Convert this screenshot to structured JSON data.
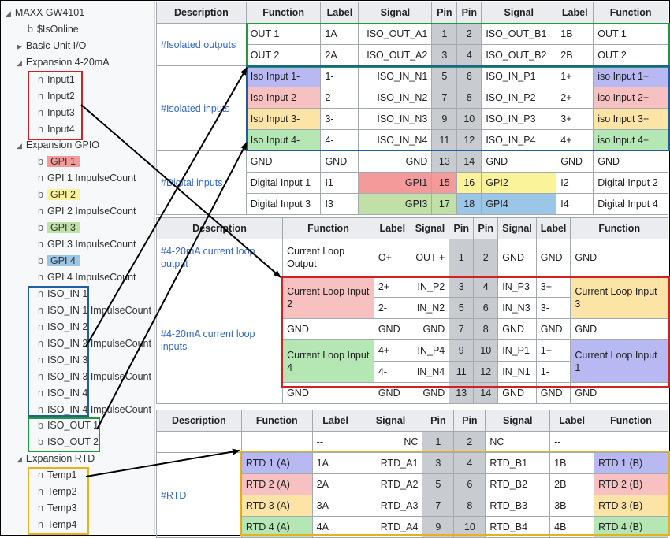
{
  "colors": {
    "blue": "#b8b8f2",
    "red": "#f7c1c1",
    "yellow": "#fce4a6",
    "green": "#b5e7b5",
    "gpi1": "#f59a9a",
    "gpi2": "#fbf39a",
    "gpi3": "#c0e0a8",
    "gpi4": "#9cc6e6"
  },
  "tree": {
    "root": "MAXX GW4101",
    "isonline": "$IsOnline",
    "basic_io": "Basic Unit I/O",
    "exp_420": "Expansion 4-20mA",
    "inputs": [
      "Input1",
      "Input2",
      "Input3",
      "Input4"
    ],
    "exp_gpio": "Expansion GPIO",
    "gpio": [
      "GPI 1",
      "GPI 1 ImpulseCount",
      "GPI 2",
      "GPI 2 ImpulseCount",
      "GPI 3",
      "GPI 3 ImpulseCount",
      "GPI 4",
      "GPI 4 ImpulseCount"
    ],
    "iso_in": [
      "ISO_IN 1",
      "ISO_IN 1 ImpulseCount",
      "ISO_IN 2",
      "ISO_IN 2 ImpulseCount",
      "ISO_IN 3",
      "ISO_IN 3 ImpulseCount",
      "ISO_IN 4",
      "ISO_IN 4 ImpulseCount"
    ],
    "iso_out": [
      "ISO_OUT 1",
      "ISO_OUT 2"
    ],
    "exp_rtd": "Expansion RTD",
    "temps": [
      "Temp1",
      "Temp2",
      "Temp3",
      "Temp4"
    ],
    "prefix_b": "b",
    "prefix_n": "n"
  },
  "table1": {
    "headers": [
      "Description",
      "Function",
      "Label",
      "Signal",
      "Pin",
      "Pin",
      "Signal",
      "Label",
      "Function"
    ],
    "iso_outputs": "#Isolated outputs",
    "iso_inputs": "#Isolated inputs",
    "digital_inputs": "#Digital inputs",
    "rows": [
      [
        "OUT 1",
        "1A",
        "ISO_OUT_A1",
        "1",
        "2",
        "ISO_OUT_B1",
        "1B",
        "OUT 1"
      ],
      [
        "OUT 2",
        "2A",
        "ISO_OUT_A2",
        "3",
        "4",
        "ISO_OUT_B2",
        "2B",
        "OUT 2"
      ],
      [
        "Iso Input 1-",
        "1-",
        "ISO_IN_N1",
        "5",
        "6",
        "ISO_IN_P1",
        "1+",
        "iso Input 1+"
      ],
      [
        "Iso Input 2-",
        "2-",
        "ISO_IN_N2",
        "7",
        "8",
        "ISO_IN_P2",
        "2+",
        "iso Input 2+"
      ],
      [
        "Iso Input 3-",
        "3-",
        "ISO_IN_N3",
        "9",
        "10",
        "ISO_IN_P3",
        "3+",
        "iso Input 3+"
      ],
      [
        "Iso Input 4-",
        "4-",
        "ISO_IN_N4",
        "11",
        "12",
        "ISO_IN_P4",
        "4+",
        "iso Input 4+"
      ],
      [
        "GND",
        "GND",
        "GND",
        "13",
        "14",
        "GND",
        "GND",
        "GND"
      ],
      [
        "Digital Input 1",
        "I1",
        "GPI1",
        "15",
        "16",
        "GPI2",
        "I2",
        "Digital Input 2"
      ],
      [
        "Digital Input 3",
        "I3",
        "GPI3",
        "17",
        "18",
        "GPI4",
        "I4",
        "Digital Input 4"
      ]
    ]
  },
  "table2": {
    "headers": [
      "Description",
      "Function",
      "Label",
      "Signal",
      "Pin",
      "Pin",
      "Signal",
      "Label",
      "Function"
    ],
    "desc_output": "#4-20mA current loop output",
    "desc_inputs": "#4-20mA current loop inputs",
    "row1": [
      "Current Loop Output",
      "O+",
      "OUT +",
      "1",
      "2",
      "GND",
      "GND",
      "GND"
    ],
    "cl_input2": "Current Loop Input 2",
    "cl_input3": "Current Loop Input 3",
    "cl_input4": "Current Loop Input 4",
    "cl_input1": "Current Loop Input 1",
    "r2": [
      "2+",
      "IN_P2",
      "3",
      "4",
      "IN_P3",
      "3+"
    ],
    "r3": [
      "2-",
      "IN_N2",
      "5",
      "6",
      "IN_N3",
      "3-"
    ],
    "r4": [
      "GND",
      "GND",
      "GND",
      "7",
      "8",
      "GND",
      "GND",
      "GND"
    ],
    "r5": [
      "4+",
      "IN_P4",
      "9",
      "10",
      "IN_P1",
      "1+"
    ],
    "r6": [
      "4-",
      "IN_N4",
      "11",
      "12",
      "IN_N1",
      "1-"
    ],
    "r7": [
      "GND",
      "GND",
      "GND",
      "13",
      "14",
      "GND",
      "GND",
      "GND"
    ]
  },
  "table3": {
    "headers": [
      "Description",
      "Function",
      "Label",
      "Signal",
      "Pin",
      "Pin",
      "Signal",
      "Label",
      "Function"
    ],
    "desc_rtd": "#RTD",
    "rows": [
      [
        "",
        "--",
        "NC",
        "1",
        "2",
        "NC",
        "--",
        ""
      ],
      [
        "RTD 1 (A)",
        "1A",
        "RTD_A1",
        "3",
        "4",
        "RTD_B1",
        "1B",
        "RTD 1 (B)"
      ],
      [
        "RTD 2 (A)",
        "2A",
        "RTD_A2",
        "5",
        "6",
        "RTD_B2",
        "2B",
        "RTD 2 (B)"
      ],
      [
        "RTD 3 (A)",
        "3A",
        "RTD_A3",
        "7",
        "8",
        "RTD_B3",
        "3B",
        "RTD 3 (B)"
      ],
      [
        "RTD 4 (A)",
        "4A",
        "RTD_A4",
        "9",
        "10",
        "RTD_B4",
        "4B",
        "RTD 4 (B)"
      ]
    ]
  }
}
